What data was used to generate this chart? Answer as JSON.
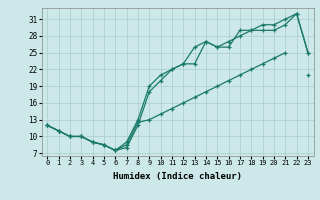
{
  "xlabel": "Humidex (Indice chaleur)",
  "background_color": "#cce8e8",
  "grid_color": "#aacccc",
  "line_color": "#1a7a6a",
  "x_values": [
    0,
    1,
    2,
    3,
    4,
    5,
    6,
    7,
    8,
    9,
    10,
    11,
    12,
    13,
    14,
    15,
    16,
    17,
    18,
    19,
    20,
    21,
    22,
    23
  ],
  "line1_y": [
    12,
    11,
    10,
    10,
    9,
    8.5,
    7.5,
    9,
    13,
    19,
    21,
    22,
    23,
    26,
    27,
    26,
    26,
    29,
    29,
    30,
    30,
    31,
    32,
    25
  ],
  "line2_y": [
    12,
    11,
    10,
    10,
    9,
    8.5,
    7.5,
    8,
    12,
    18,
    20,
    22,
    23,
    23,
    27,
    26,
    27,
    28,
    29,
    29,
    29,
    30,
    32,
    25
  ],
  "line3_y": [
    12,
    11,
    10,
    10,
    9,
    8.5,
    7.5,
    8.5,
    12.5,
    13,
    14,
    15,
    16,
    17,
    18,
    19,
    20,
    21,
    22,
    23,
    24,
    25,
    null,
    21
  ],
  "xlim": [
    -0.5,
    23.5
  ],
  "ylim": [
    6.5,
    33
  ],
  "yticks": [
    7,
    10,
    13,
    16,
    19,
    22,
    25,
    28,
    31
  ],
  "xticks": [
    0,
    1,
    2,
    3,
    4,
    5,
    6,
    7,
    8,
    9,
    10,
    11,
    12,
    13,
    14,
    15,
    16,
    17,
    18,
    19,
    20,
    21,
    22,
    23
  ],
  "xlabel_fontsize": 6.5,
  "tick_fontsize": 5
}
